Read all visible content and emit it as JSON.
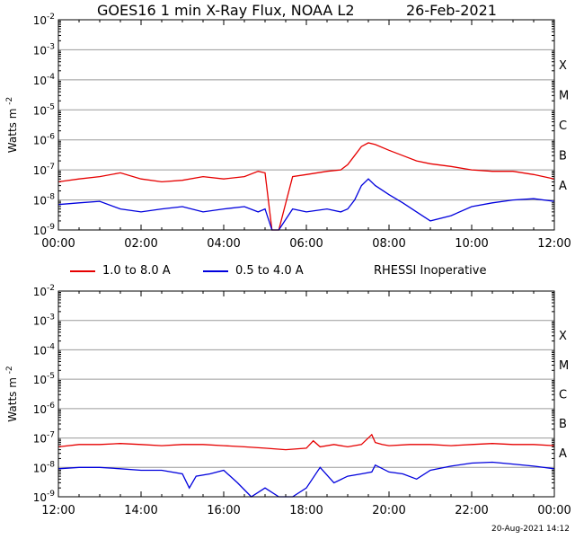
{
  "header": {
    "title": "GOES16 1 min X-Ray Flux, NOAA L2",
    "date": "26-Feb-2021"
  },
  "legend": {
    "items": [
      {
        "label": "1.0 to 8.0 A",
        "color": "#e60000"
      },
      {
        "label": "0.5 to 4.0 A",
        "color": "#0000dd"
      }
    ],
    "note": "RHESSI Inoperative"
  },
  "footer": {
    "stamp": "20-Aug-2021 14:12"
  },
  "chart_data": [
    {
      "type": "line",
      "ylabel": "Watts m",
      "ylabel_sup": "-2",
      "yscale": "log",
      "ylim_exp": [
        -9,
        -2
      ],
      "ytick_exponents": [
        -9,
        -8,
        -7,
        -6,
        -5,
        -4,
        -3,
        -2
      ],
      "flare_classes": [
        "A",
        "B",
        "C",
        "M",
        "X"
      ],
      "xlim": [
        "00:00",
        "12:00"
      ],
      "xtick_labels": [
        "00:00",
        "02:00",
        "04:00",
        "06:00",
        "08:00",
        "10:00",
        "12:00"
      ],
      "series": [
        {
          "name": "1.0 to 8.0 A",
          "color": "#e60000",
          "x": [
            "00:00",
            "00:30",
            "01:00",
            "01:30",
            "02:00",
            "02:30",
            "03:00",
            "03:30",
            "04:00",
            "04:30",
            "04:50",
            "05:00",
            "05:10",
            "05:20",
            "05:40",
            "06:00",
            "06:30",
            "06:50",
            "07:00",
            "07:10",
            "07:20",
            "07:30",
            "07:40",
            "08:00",
            "08:20",
            "08:40",
            "09:00",
            "09:30",
            "10:00",
            "10:30",
            "11:00",
            "11:30",
            "12:00"
          ],
          "y": [
            4e-08,
            5e-08,
            6e-08,
            8e-08,
            5e-08,
            4e-08,
            4.5e-08,
            6e-08,
            5e-08,
            6e-08,
            9e-08,
            8e-08,
            1e-09,
            1e-09,
            6e-08,
            7e-08,
            9e-08,
            1e-07,
            1.5e-07,
            3e-07,
            6e-07,
            8e-07,
            7e-07,
            4.5e-07,
            3e-07,
            2e-07,
            1.6e-07,
            1.3e-07,
            1e-07,
            9e-08,
            9e-08,
            7e-08,
            5e-08
          ]
        },
        {
          "name": "0.5 to 4.0 A",
          "color": "#0000dd",
          "x": [
            "00:00",
            "00:30",
            "01:00",
            "01:30",
            "02:00",
            "02:30",
            "03:00",
            "03:30",
            "04:00",
            "04:30",
            "04:50",
            "05:00",
            "05:10",
            "05:20",
            "05:40",
            "06:00",
            "06:30",
            "06:50",
            "07:00",
            "07:10",
            "07:20",
            "07:30",
            "07:40",
            "08:00",
            "08:20",
            "08:40",
            "09:00",
            "09:30",
            "10:00",
            "10:30",
            "11:00",
            "11:30",
            "12:00"
          ],
          "y": [
            7e-09,
            8e-09,
            9e-09,
            5e-09,
            4e-09,
            5e-09,
            6e-09,
            4e-09,
            5e-09,
            6e-09,
            4e-09,
            5e-09,
            1e-09,
            1e-09,
            5e-09,
            4e-09,
            5e-09,
            4e-09,
            5e-09,
            1e-08,
            3e-08,
            5e-08,
            3e-08,
            1.5e-08,
            8e-09,
            4e-09,
            2e-09,
            3e-09,
            6e-09,
            8e-09,
            1e-08,
            1.1e-08,
            9e-09
          ]
        }
      ]
    },
    {
      "type": "line",
      "ylabel": "Watts m",
      "ylabel_sup": "-2",
      "yscale": "log",
      "ylim_exp": [
        -9,
        -2
      ],
      "ytick_exponents": [
        -9,
        -8,
        -7,
        -6,
        -5,
        -4,
        -3,
        -2
      ],
      "flare_classes": [
        "A",
        "B",
        "C",
        "M",
        "X"
      ],
      "xlim": [
        "12:00",
        "00:00"
      ],
      "xtick_labels": [
        "12:00",
        "14:00",
        "16:00",
        "18:00",
        "20:00",
        "22:00",
        "00:00"
      ],
      "series": [
        {
          "name": "1.0 to 8.0 A",
          "color": "#e60000",
          "x": [
            "12:00",
            "12:30",
            "13:00",
            "13:30",
            "14:00",
            "14:30",
            "15:00",
            "15:30",
            "16:00",
            "16:30",
            "17:00",
            "17:30",
            "18:00",
            "18:10",
            "18:20",
            "18:40",
            "19:00",
            "19:20",
            "19:35",
            "19:40",
            "19:50",
            "20:00",
            "20:30",
            "21:00",
            "21:30",
            "22:00",
            "22:30",
            "23:00",
            "23:30",
            "24:00"
          ],
          "y": [
            5e-08,
            6e-08,
            6e-08,
            6.5e-08,
            6e-08,
            5.5e-08,
            6e-08,
            6e-08,
            5.5e-08,
            5e-08,
            4.5e-08,
            4e-08,
            4.5e-08,
            8e-08,
            5e-08,
            6e-08,
            5e-08,
            6e-08,
            1.3e-07,
            7e-08,
            6e-08,
            5.5e-08,
            6e-08,
            6e-08,
            5.5e-08,
            6e-08,
            6.5e-08,
            6e-08,
            6e-08,
            5.5e-08
          ]
        },
        {
          "name": "0.5 to 4.0 A",
          "color": "#0000dd",
          "x": [
            "12:00",
            "12:30",
            "13:00",
            "13:30",
            "14:00",
            "14:30",
            "15:00",
            "15:10",
            "15:20",
            "15:40",
            "16:00",
            "16:20",
            "16:40",
            "17:00",
            "17:20",
            "17:40",
            "18:00",
            "18:20",
            "18:40",
            "19:00",
            "19:20",
            "19:35",
            "19:40",
            "20:00",
            "20:20",
            "20:40",
            "21:00",
            "21:30",
            "22:00",
            "22:30",
            "23:00",
            "23:30",
            "24:00"
          ],
          "y": [
            9e-09,
            1e-08,
            1e-08,
            9e-09,
            8e-09,
            8e-09,
            6e-09,
            2e-09,
            5e-09,
            6e-09,
            8e-09,
            3e-09,
            1e-09,
            2e-09,
            1e-09,
            1e-09,
            2e-09,
            1e-08,
            3e-09,
            5e-09,
            6e-09,
            7e-09,
            1.2e-08,
            7e-09,
            6e-09,
            4e-09,
            8e-09,
            1.1e-08,
            1.4e-08,
            1.5e-08,
            1.3e-08,
            1.1e-08,
            9e-09
          ]
        }
      ]
    }
  ]
}
